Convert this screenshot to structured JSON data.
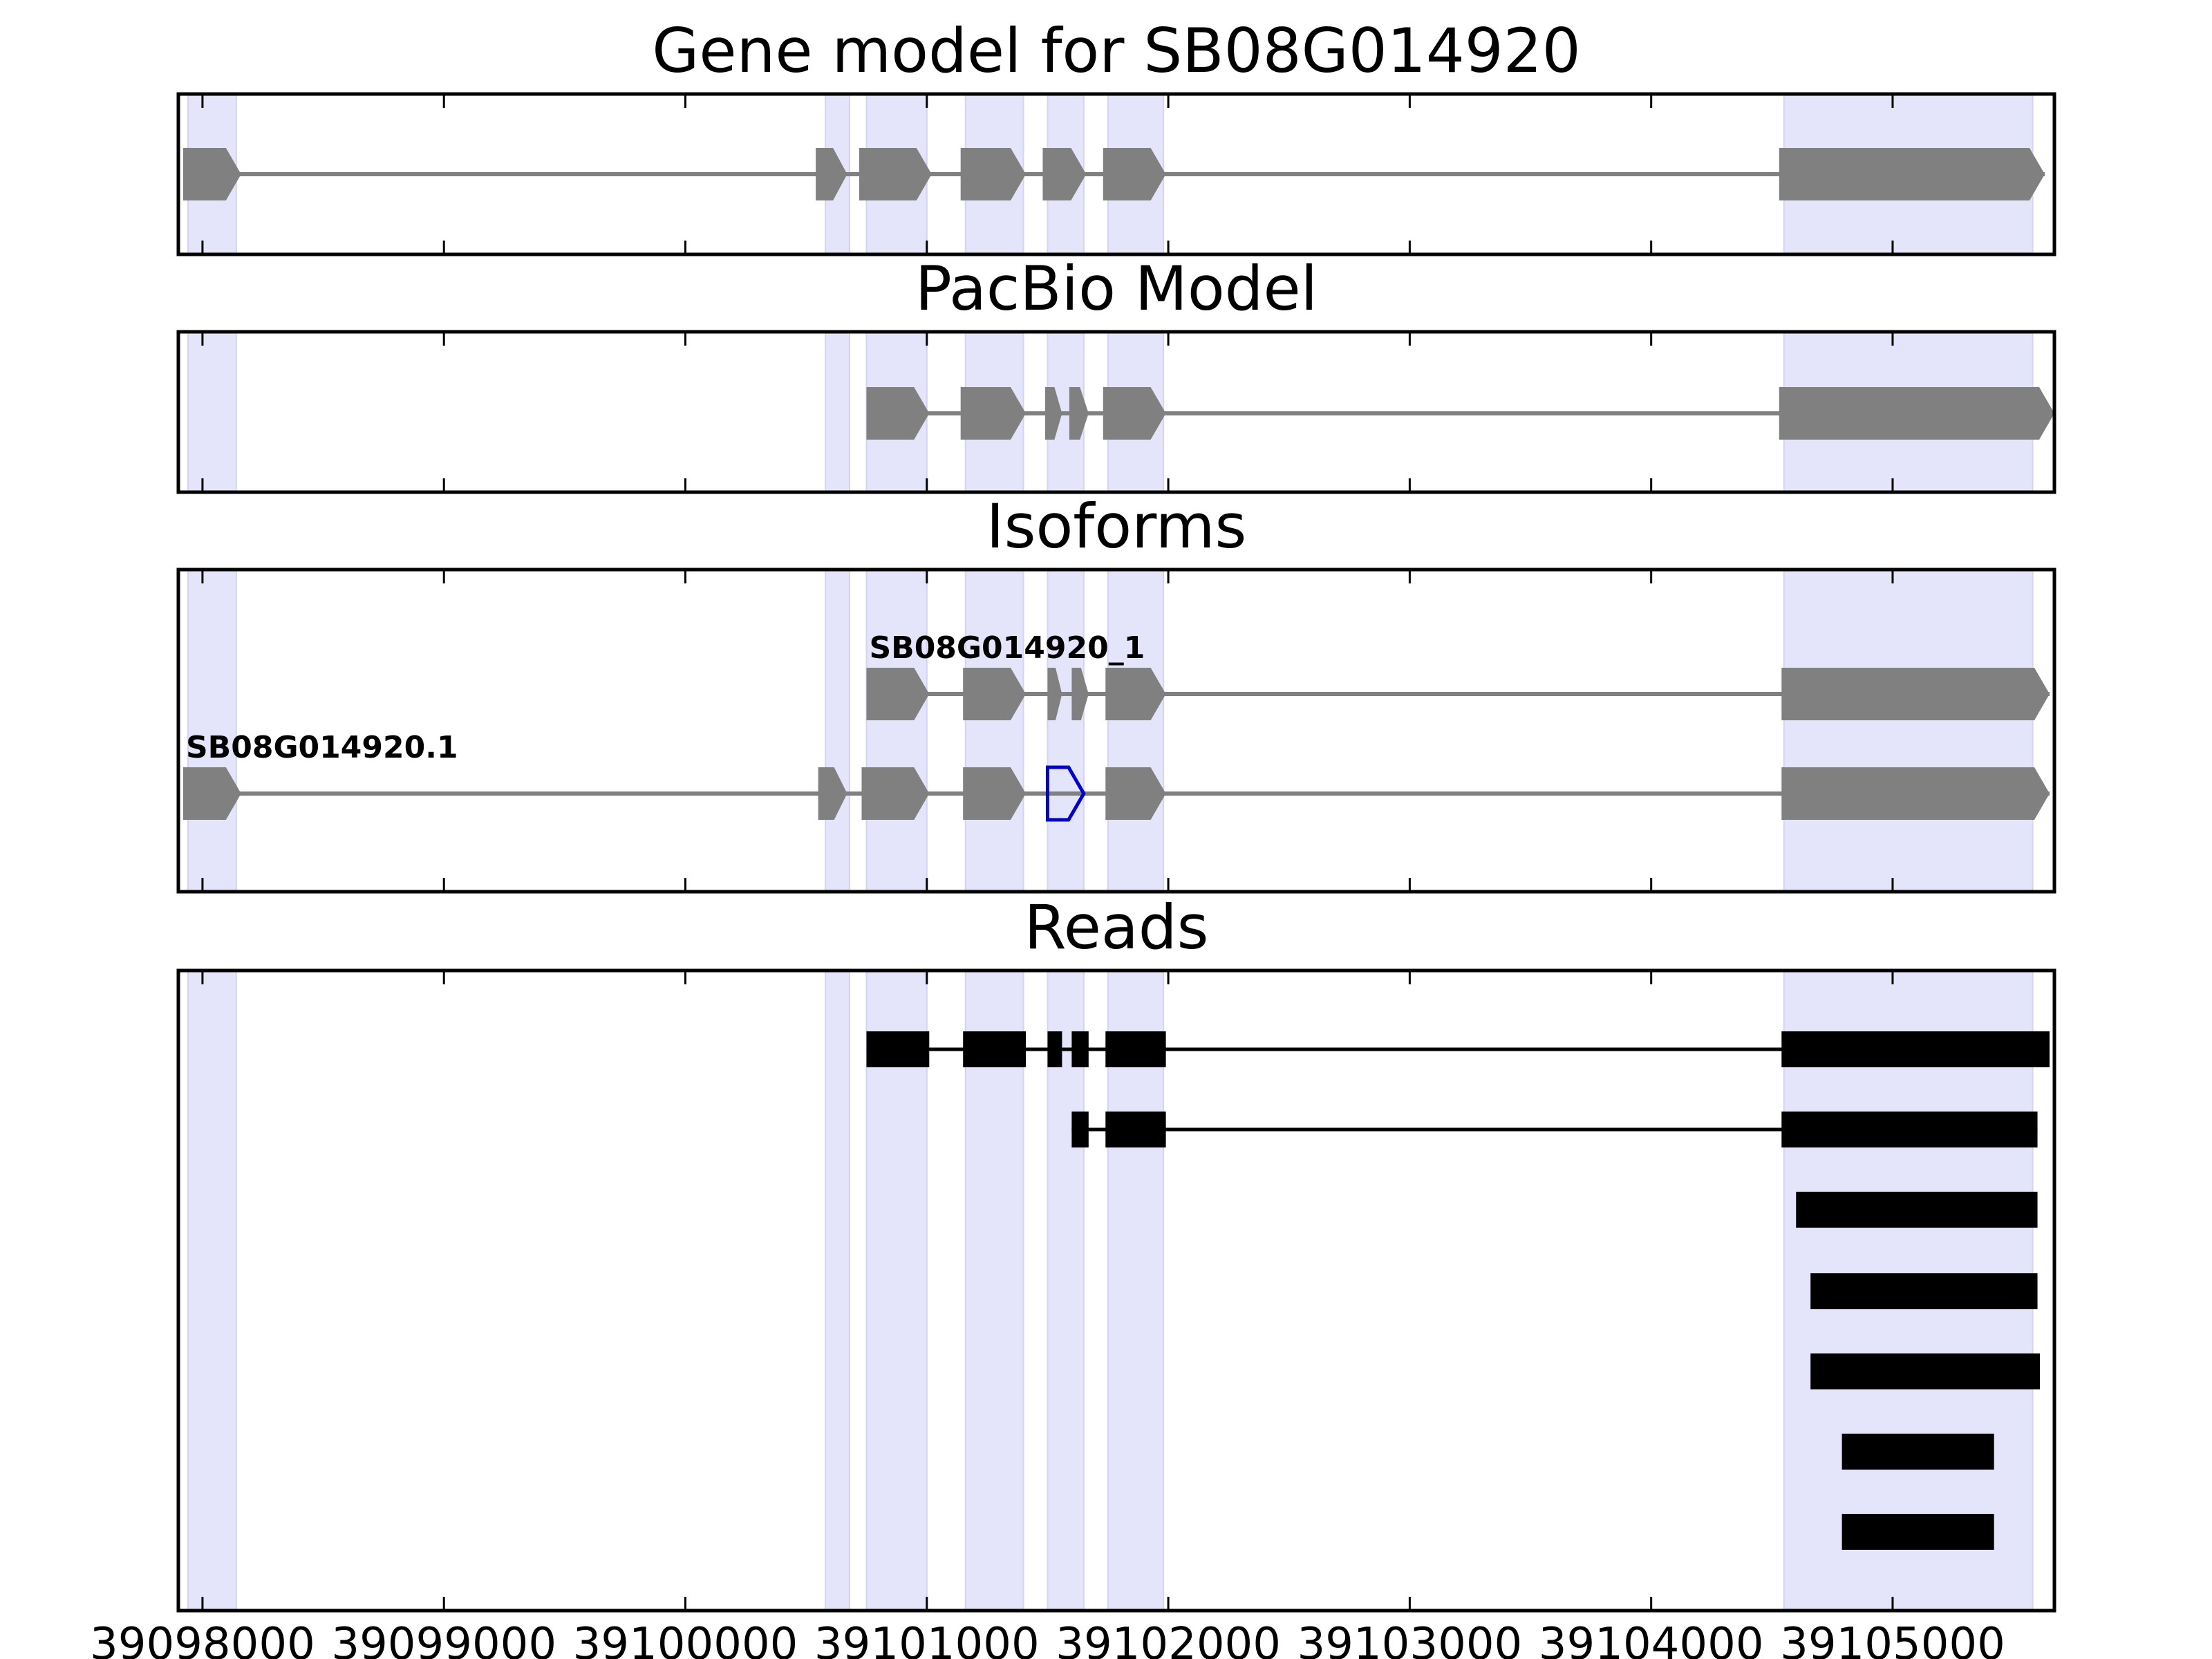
{
  "chart_data": {
    "type": "gene-track",
    "xlim": [
      39097900,
      39105670
    ],
    "x_ticks": [
      39098000,
      39099000,
      39100000,
      39101000,
      39102000,
      39103000,
      39104000,
      39105000
    ],
    "x_tick_labels": [
      "39098000",
      "39099000",
      "39100000",
      "39101000",
      "39102000",
      "39103000",
      "39104000",
      "39105000"
    ],
    "highlight_regions": [
      [
        39097940,
        39098140
      ],
      [
        39100580,
        39100680
      ],
      [
        39100750,
        39101000
      ],
      [
        39101160,
        39101400
      ],
      [
        39101500,
        39101650
      ],
      [
        39101750,
        39101980
      ],
      [
        39104550,
        39105580
      ]
    ],
    "panels": [
      {
        "title": "Gene model for SB08G014920",
        "kind": "model",
        "rows": [
          {
            "label": "",
            "strand": "+",
            "exons": [
              [
                39097920,
                39098160
              ],
              [
                39100540,
                39100670
              ],
              [
                39100720,
                39101020
              ],
              [
                39101140,
                39101410
              ],
              [
                39101480,
                39101660
              ],
              [
                39101730,
                39101990
              ],
              [
                39104530,
                39105630
              ]
            ]
          }
        ]
      },
      {
        "title": "PacBio Model",
        "kind": "model",
        "rows": [
          {
            "label": "",
            "strand": "+",
            "exons": [
              [
                39100750,
                39101010
              ],
              [
                39101140,
                39101410
              ],
              [
                39101490,
                39101560
              ],
              [
                39101590,
                39101670
              ],
              [
                39101730,
                39101990
              ],
              [
                39104530,
                39105670
              ]
            ]
          }
        ]
      },
      {
        "title": "Isoforms",
        "kind": "isoforms",
        "rows": [
          {
            "label": "SB08G014920_1",
            "strand": "+",
            "exons": [
              [
                39100750,
                39101010
              ],
              [
                39101150,
                39101410
              ],
              [
                39101500,
                39101560
              ],
              [
                39101600,
                39101670
              ],
              [
                39101740,
                39101990
              ],
              [
                39104540,
                39105650
              ]
            ]
          },
          {
            "label": "SB08G014920.1",
            "strand": "+",
            "exons": [
              [
                39097920,
                39098160
              ],
              [
                39100550,
                39100670
              ],
              [
                39100730,
                39101010
              ],
              [
                39101150,
                39101410
              ],
              [
                39101740,
                39101990
              ],
              [
                39104540,
                39105650
              ]
            ],
            "outlined_exon": [
              39101500,
              39101650
            ]
          }
        ]
      },
      {
        "title": "Reads",
        "kind": "reads",
        "rows": [
          {
            "label": "",
            "exons": [
              [
                39100750,
                39101010
              ],
              [
                39101150,
                39101410
              ],
              [
                39101500,
                39101560
              ],
              [
                39101600,
                39101670
              ],
              [
                39101740,
                39101990
              ],
              [
                39104540,
                39105650
              ]
            ]
          },
          {
            "label": "",
            "exons": [
              [
                39101600,
                39101670
              ],
              [
                39101740,
                39101990
              ],
              [
                39104540,
                39105600
              ]
            ]
          },
          {
            "label": "",
            "exons": [
              [
                39104600,
                39105600
              ]
            ]
          },
          {
            "label": "",
            "exons": [
              [
                39104660,
                39105600
              ]
            ]
          },
          {
            "label": "",
            "exons": [
              [
                39104660,
                39105610
              ]
            ]
          },
          {
            "label": "",
            "exons": [
              [
                39104790,
                39105420
              ]
            ]
          },
          {
            "label": "",
            "exons": [
              [
                39104790,
                39105420
              ]
            ]
          }
        ]
      }
    ]
  },
  "colors": {
    "highlight": "#e4e4fa",
    "highlight_edge": "#d4d4f0",
    "exon": "#808080",
    "intron": "#808080",
    "read": "#000000",
    "outline": "#0000cc",
    "frame": "#000000"
  }
}
